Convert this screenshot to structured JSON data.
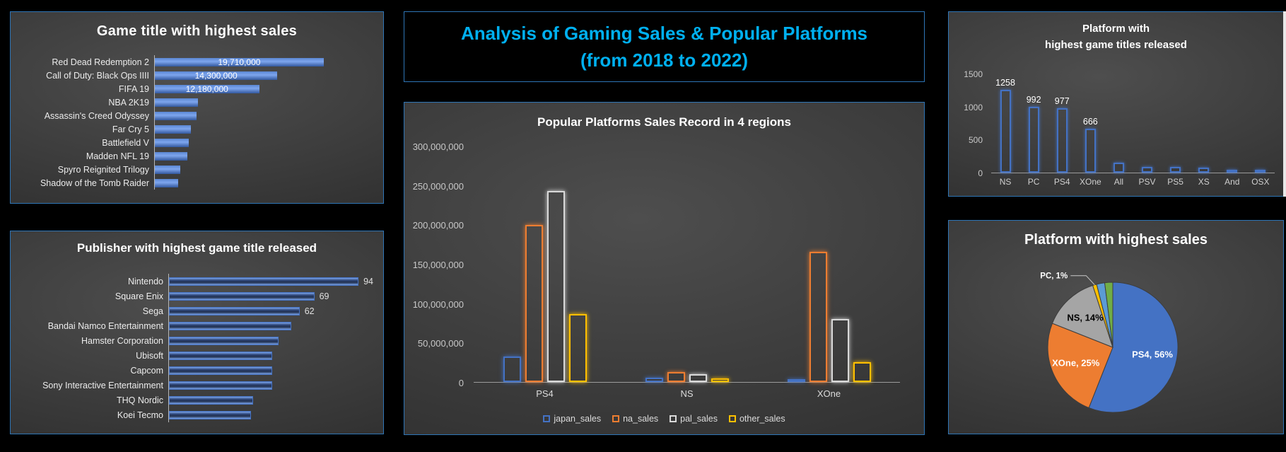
{
  "main_title": {
    "line1": "Analysis of Gaming Sales & Popular Platforms",
    "line2": "(from 2018 to 2022)",
    "color": "#00b0f0"
  },
  "theme": {
    "background": "#000000",
    "panel_border": "#2e75b6",
    "accent_blue": "#4472c4",
    "accent_orange": "#ed7d31",
    "accent_gray": "#a5a5a5",
    "accent_yellow": "#ffc000"
  },
  "chart_data": [
    {
      "id": "game_sales",
      "type": "bar",
      "orientation": "horizontal",
      "title": "Game title with highest sales",
      "categories": [
        "Red Dead Redemption 2",
        "Call of Duty: Black Ops IIII",
        "FIFA 19",
        "NBA 2K19",
        "Assassin's Creed Odyssey",
        "Far Cry 5",
        "Battlefield V",
        "Madden NFL 19",
        "Spyro Reignited Trilogy",
        "Shadow of the Tomb Raider"
      ],
      "values": [
        19710000,
        14300000,
        12180000,
        5060000,
        4880000,
        4240000,
        3960000,
        3780000,
        2950000,
        2760000
      ],
      "data_labels": [
        "19,710,000",
        "14,300,000",
        "12,180,000",
        "",
        "",
        "",
        "",
        "",
        "",
        ""
      ],
      "xlim": [
        0,
        25500000
      ],
      "bar_color": "#4472c4",
      "grid": false
    },
    {
      "id": "publisher_titles",
      "type": "bar",
      "orientation": "horizontal",
      "title": "Publisher with highest game title released",
      "categories": [
        "Nintendo",
        "Square Enix",
        "Sega",
        "Bandai Namco Entertainment",
        "Hamster Corporation",
        "Ubisoft",
        "Capcom",
        "Sony Interactive Entertainment",
        "THQ Nordic",
        "Koei Tecmo"
      ],
      "values": [
        94,
        69,
        62,
        58,
        52,
        49,
        49,
        49,
        40,
        39
      ],
      "data_labels": [
        "94",
        "69",
        "62",
        "",
        "",
        "",
        "",
        "",
        "",
        ""
      ],
      "xlim": [
        0,
        97
      ],
      "bar_color": "#4472c4",
      "grid": false
    },
    {
      "id": "region_sales",
      "type": "bar",
      "orientation": "vertical",
      "grouped": true,
      "title": "Popular Platforms Sales Record in 4 regions",
      "categories": [
        "PS4",
        "NS",
        "XOne"
      ],
      "series": [
        {
          "name": "japan_sales",
          "color": "#4472c4",
          "values": [
            32000000,
            5000000,
            1000000
          ]
        },
        {
          "name": "na_sales",
          "color": "#ed7d31",
          "values": [
            199000000,
            12500000,
            165000000
          ]
        },
        {
          "name": "pal_sales",
          "color": "#d9d9d9",
          "values": [
            243000000,
            10000000,
            80000000
          ]
        },
        {
          "name": "other_sales",
          "color": "#ffc000",
          "values": [
            86000000,
            4500000,
            25000000
          ]
        }
      ],
      "ylim": [
        0,
        300000000
      ],
      "yticks": [
        {
          "value": 0,
          "label": "0"
        },
        {
          "value": 50000000,
          "label": "50,000,000"
        },
        {
          "value": 100000000,
          "label": "100,000,000"
        },
        {
          "value": 150000000,
          "label": "150,000,000"
        },
        {
          "value": 200000000,
          "label": "200,000,000"
        },
        {
          "value": 250000000,
          "label": "250,000,000"
        },
        {
          "value": 300000000,
          "label": "300,000,000"
        }
      ],
      "legend_position": "bottom",
      "grid": false
    },
    {
      "id": "platform_titles",
      "type": "bar",
      "orientation": "vertical",
      "title_lines": [
        "Platform with",
        "highest game titles released"
      ],
      "categories": [
        "NS",
        "PC",
        "PS4",
        "XOne",
        "All",
        "PSV",
        "PS5",
        "XS",
        "And",
        "OSX"
      ],
      "values": [
        1258,
        992,
        977,
        666,
        150,
        90,
        88,
        75,
        38,
        40
      ],
      "data_labels": [
        "1258",
        "992",
        "977",
        "666",
        "",
        "",
        "",
        "",
        "",
        ""
      ],
      "ylim": [
        0,
        1500
      ],
      "yticks": [
        {
          "value": 0,
          "label": "0"
        },
        {
          "value": 500,
          "label": "500"
        },
        {
          "value": 1000,
          "label": "1000"
        },
        {
          "value": 1500,
          "label": "1500"
        }
      ],
      "bar_color": "#4472c4",
      "grid": false
    },
    {
      "id": "platform_sales_share",
      "type": "pie",
      "title": "Platform with highest sales",
      "slices": [
        {
          "name": "PS4",
          "pct": 56,
          "color": "#4472c4",
          "label": "PS4, 56%",
          "label_color": "#ffffff",
          "label_style": "inside"
        },
        {
          "name": "XOne",
          "pct": 25,
          "color": "#ed7d31",
          "label": "XOne, 25%",
          "label_color": "#ffffff",
          "label_style": "inside"
        },
        {
          "name": "NS",
          "pct": 14,
          "color": "#a5a5a5",
          "label": "NS, 14%",
          "label_color": "#000000",
          "label_style": "inside"
        },
        {
          "name": "PC",
          "pct": 1,
          "color": "#ffc000",
          "label": "PC, 1%",
          "label_color": "#ffffff",
          "label_style": "callout"
        },
        {
          "name": "",
          "pct": 2,
          "color": "#5b9bd5",
          "label": "",
          "label_color": "",
          "label_style": "none"
        },
        {
          "name": "",
          "pct": 2,
          "color": "#70ad47",
          "label": "",
          "label_color": "",
          "label_style": "none"
        }
      ]
    }
  ]
}
